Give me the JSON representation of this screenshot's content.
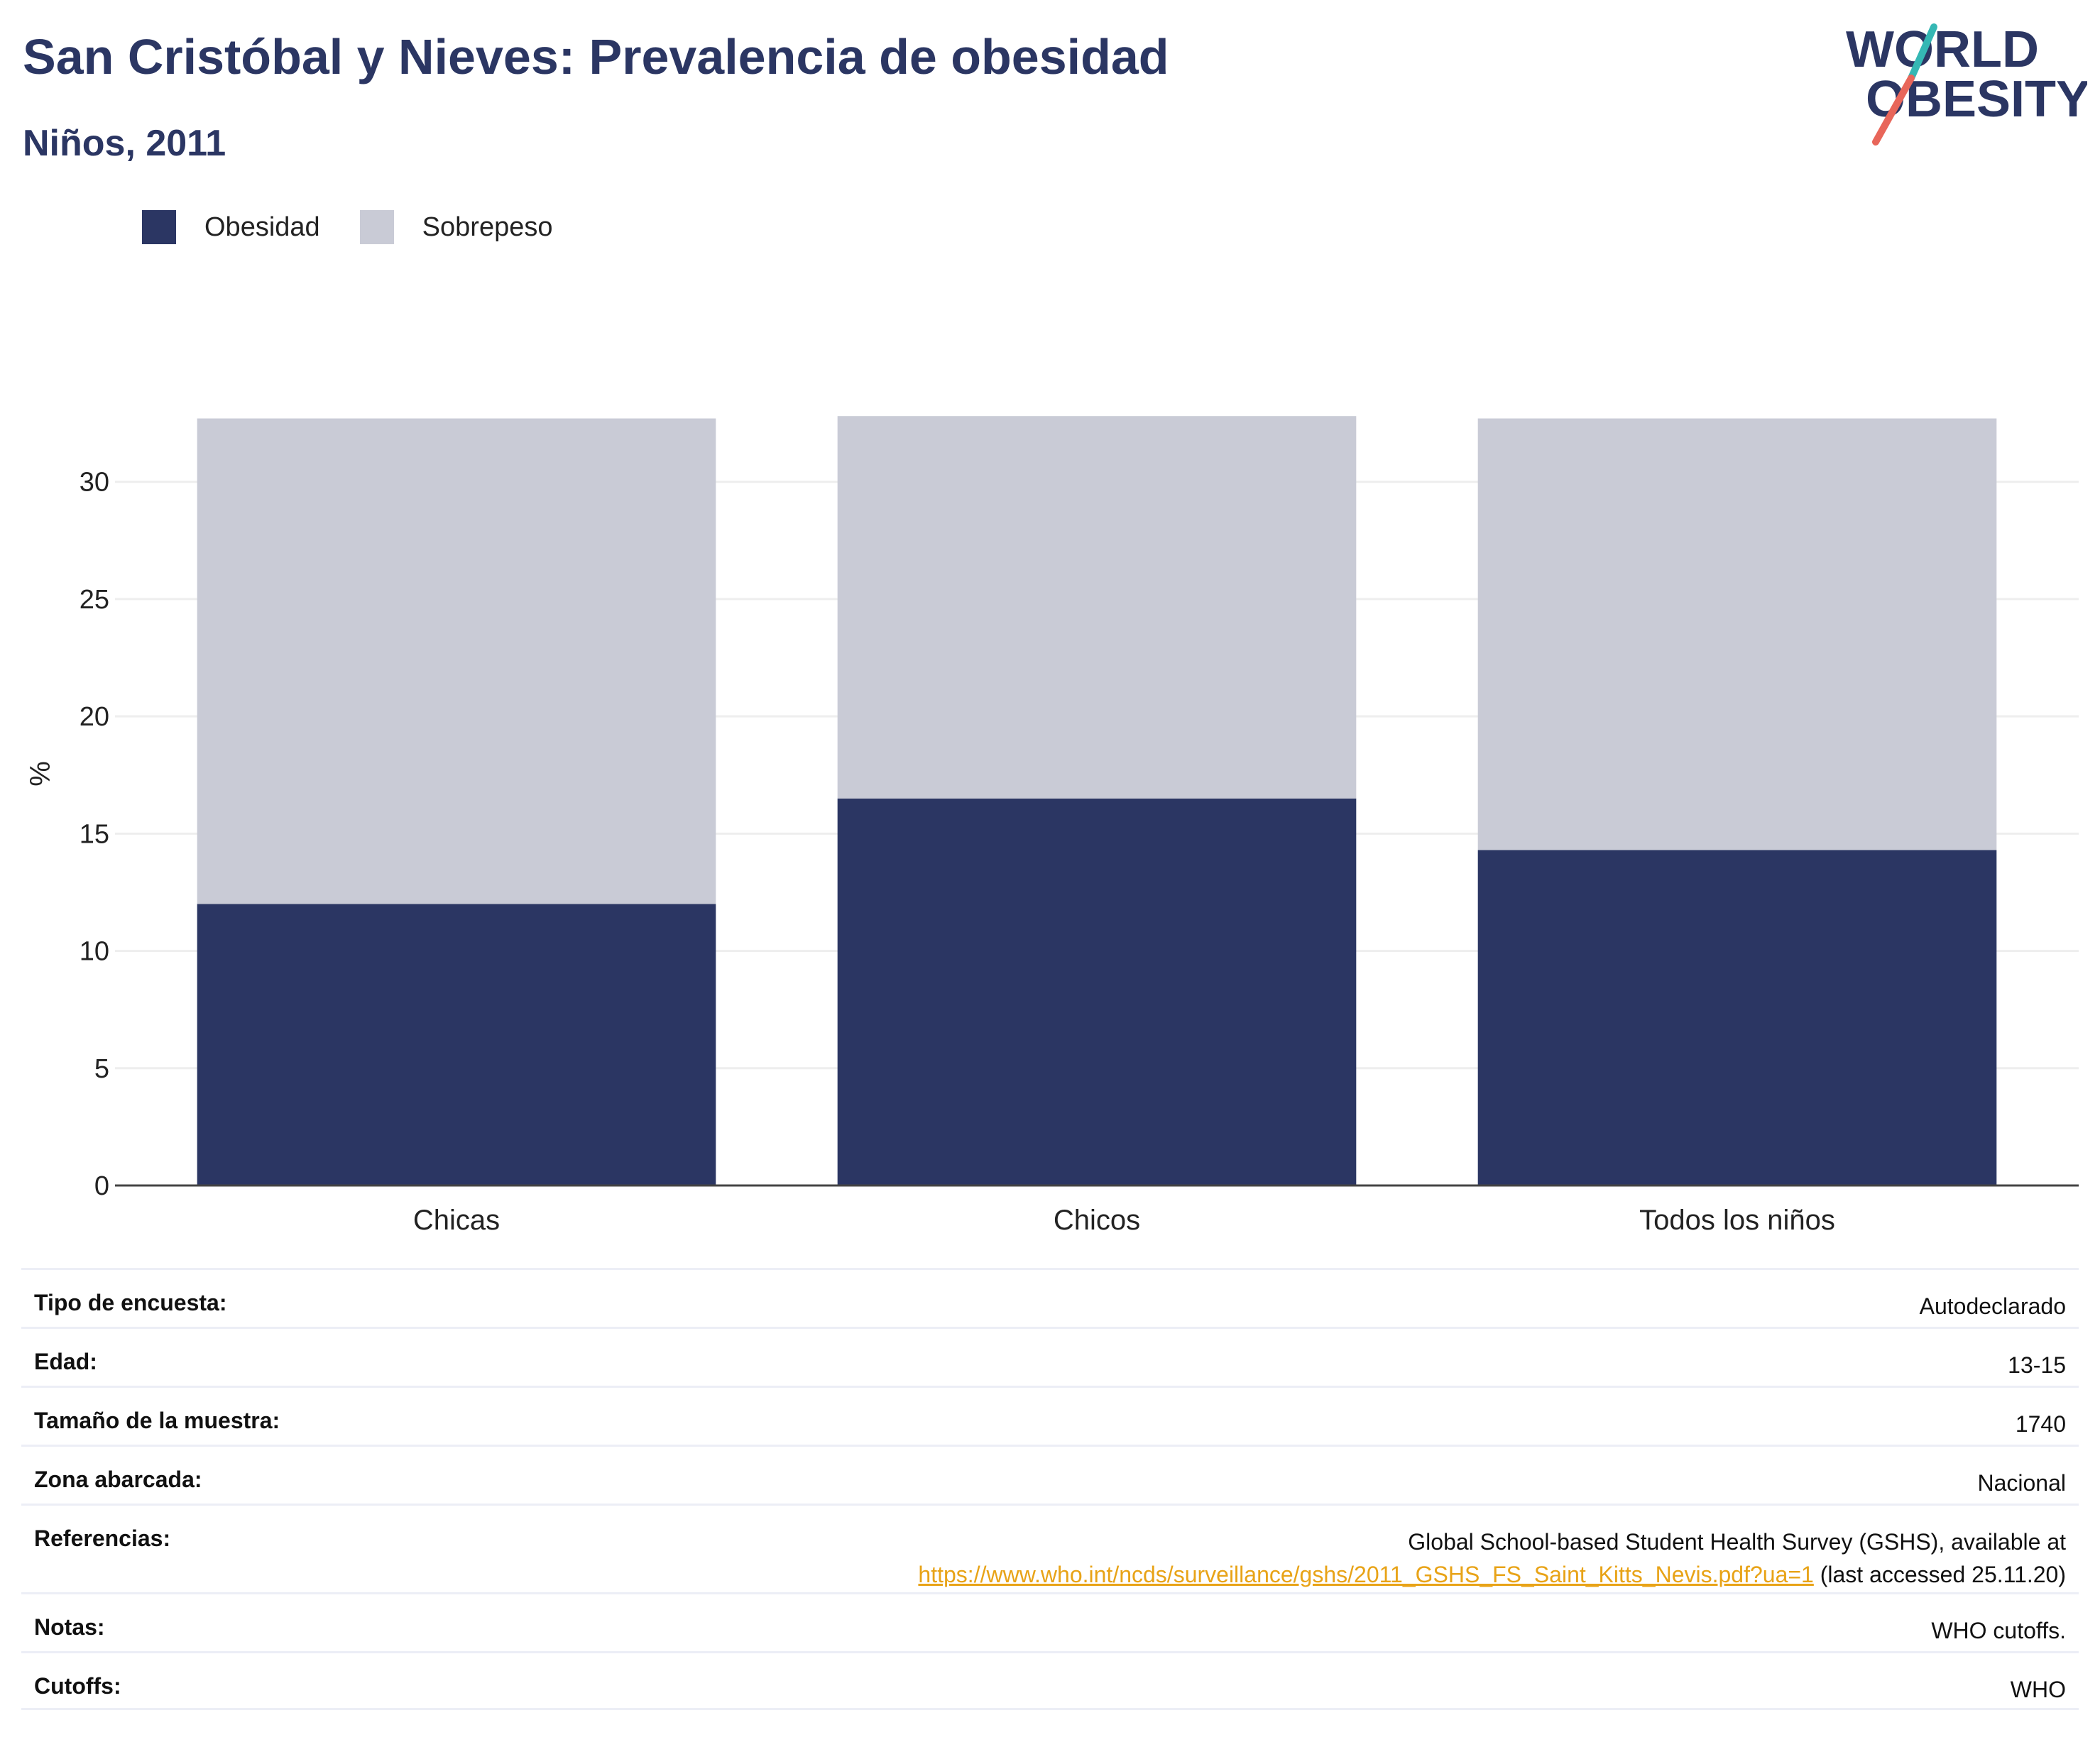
{
  "header": {
    "title": "San Cristóbal y Nieves: Prevalencia de obesidad",
    "subtitle": "Niños, 2011"
  },
  "logo": {
    "line1": "WORLD",
    "line2": "OBESITY"
  },
  "legend": [
    {
      "label": "Obesidad",
      "color": "#2b3663"
    },
    {
      "label": "Sobrepeso",
      "color": "#c9cbd6"
    }
  ],
  "chart_data": {
    "type": "bar",
    "stacked": true,
    "categories": [
      "Chicas",
      "Chicos",
      "Todos los niños"
    ],
    "series": [
      {
        "name": "Obesidad",
        "color": "#2b3663",
        "values": [
          12.0,
          16.5,
          14.3
        ]
      },
      {
        "name": "Sobrepeso",
        "color": "#c9cbd6",
        "values": [
          20.7,
          16.3,
          18.4
        ]
      }
    ],
    "ylabel": "%",
    "yticks": [
      0,
      5,
      10,
      15,
      20,
      25,
      30
    ],
    "ylim": [
      0,
      34.5
    ],
    "grid": true,
    "legend_position": "top-left"
  },
  "meta": [
    {
      "label": "Tipo de encuesta:",
      "value": "Autodeclarado"
    },
    {
      "label": "Edad:",
      "value": "13-15"
    },
    {
      "label": "Tamaño de la muestra:",
      "value": "1740"
    },
    {
      "label": "Zona abarcada:",
      "value": "Nacional"
    },
    {
      "label": "Referencias:",
      "value_line1": "Global School-based Student Health Survey (GSHS), available at",
      "link": "https://www.who.int/ncds/surveillance/gshs/2011_GSHS_FS_Saint_Kitts_Nevis.pdf?ua=1",
      "value_suffix": " (last accessed 25.11.20)"
    },
    {
      "label": "Notas:",
      "value": "WHO cutoffs."
    },
    {
      "label": "Cutoffs:",
      "value": "WHO"
    }
  ]
}
